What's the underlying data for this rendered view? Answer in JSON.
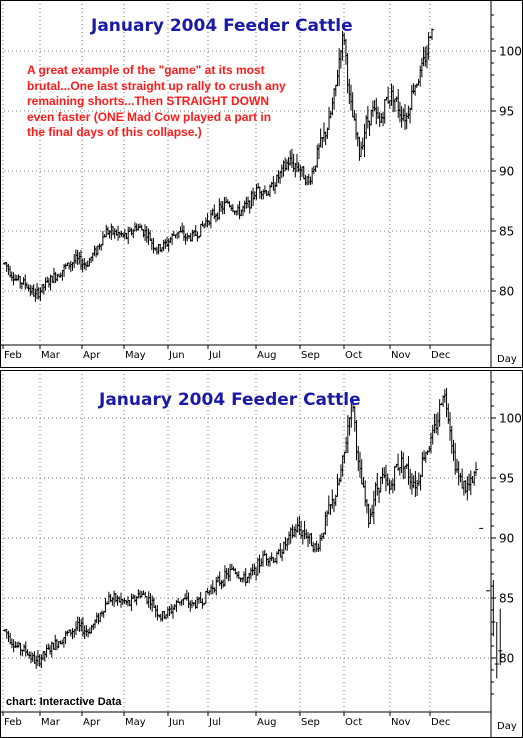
{
  "chart_data": [
    {
      "type": "ohlc",
      "title": "January 2004 Feeder Cattle",
      "annotation": "A great example of the \"game\" at its most brutal...One last straight up rally to crush any remaining shorts...Then STRAIGHT DOWN even faster (ONE Mad Cow played a part in the final days of this collapse.)",
      "x_tick_labels": [
        "Feb",
        "Mar",
        "Apr",
        "May",
        "Jun",
        "Jul",
        "Aug",
        "Sep",
        "Oct",
        "Nov",
        "Dec"
      ],
      "x_unit": "Day",
      "y_ticks": [
        80,
        85,
        90,
        95,
        100
      ],
      "ylim": [
        75.5,
        104.5
      ],
      "grid": true,
      "colors": {
        "title": "#1a1aa6",
        "annotation": "#ff1a1a",
        "bars": "#000000",
        "grid": "#666666"
      },
      "keypoints_day_close": [
        [
          0,
          82.3
        ],
        [
          6,
          81
        ],
        [
          12,
          80.6
        ],
        [
          18,
          79.6
        ],
        [
          24,
          80.5
        ],
        [
          30,
          81.3
        ],
        [
          36,
          82
        ],
        [
          42,
          82.6
        ],
        [
          48,
          82.2
        ],
        [
          54,
          83.4
        ],
        [
          60,
          85
        ],
        [
          66,
          84.8
        ],
        [
          72,
          84.5
        ],
        [
          78,
          85.4
        ],
        [
          84,
          84.8
        ],
        [
          90,
          83.4
        ],
        [
          96,
          84
        ],
        [
          102,
          85
        ],
        [
          108,
          84.4
        ],
        [
          114,
          84.8
        ],
        [
          120,
          86
        ],
        [
          126,
          86.6
        ],
        [
          132,
          87.4
        ],
        [
          138,
          86.5
        ],
        [
          144,
          87.2
        ],
        [
          150,
          88.6
        ],
        [
          156,
          88.2
        ],
        [
          162,
          89.5
        ],
        [
          168,
          90.8
        ],
        [
          174,
          90.4
        ],
        [
          180,
          89
        ],
        [
          186,
          91.8
        ],
        [
          192,
          94
        ],
        [
          196,
          97
        ],
        [
          199,
          100.5
        ],
        [
          201,
          101.2
        ],
        [
          204,
          96
        ],
        [
          208,
          93
        ],
        [
          210,
          91.5
        ],
        [
          214,
          94
        ],
        [
          218,
          95
        ],
        [
          222,
          94
        ],
        [
          226,
          96
        ],
        [
          230,
          96.4
        ],
        [
          234,
          95
        ],
        [
          238,
          94.5
        ],
        [
          242,
          97
        ],
        [
          246,
          98
        ],
        [
          250,
          100
        ],
        [
          253,
          102.3
        ]
      ],
      "days_total": 265
    },
    {
      "type": "ohlc",
      "title": "January 2004 Feeder Cattle",
      "credit": "chart: Interactive Data",
      "x_tick_labels": [
        "Feb",
        "Mar",
        "Apr",
        "May",
        "Jun",
        "Jul",
        "Aug",
        "Sep",
        "Oct",
        "Nov",
        "Dec"
      ],
      "x_unit": "Day",
      "y_ticks": [
        80,
        85,
        90,
        95,
        100
      ],
      "ylim": [
        76.8,
        103.8
      ],
      "grid": true,
      "colors": {
        "title": "#1a1aa6",
        "bars": "#000000",
        "grid": "#666666"
      },
      "keypoints_day_close": [
        [
          0,
          82.3
        ],
        [
          6,
          81
        ],
        [
          12,
          80.6
        ],
        [
          18,
          79.6
        ],
        [
          24,
          80.5
        ],
        [
          30,
          81.3
        ],
        [
          36,
          82
        ],
        [
          42,
          82.6
        ],
        [
          48,
          82.2
        ],
        [
          54,
          83.4
        ],
        [
          60,
          85
        ],
        [
          66,
          84.8
        ],
        [
          72,
          84.5
        ],
        [
          78,
          85.4
        ],
        [
          84,
          84.8
        ],
        [
          90,
          83.4
        ],
        [
          96,
          84
        ],
        [
          102,
          85
        ],
        [
          108,
          84.4
        ],
        [
          114,
          84.8
        ],
        [
          120,
          86
        ],
        [
          126,
          86.6
        ],
        [
          132,
          87.4
        ],
        [
          138,
          86.5
        ],
        [
          144,
          87.2
        ],
        [
          150,
          88.6
        ],
        [
          156,
          88.2
        ],
        [
          162,
          89.5
        ],
        [
          168,
          90.8
        ],
        [
          174,
          90.4
        ],
        [
          180,
          89
        ],
        [
          186,
          91.8
        ],
        [
          192,
          94
        ],
        [
          196,
          97
        ],
        [
          199,
          100.5
        ],
        [
          201,
          101.2
        ],
        [
          204,
          96
        ],
        [
          208,
          93
        ],
        [
          210,
          91.5
        ],
        [
          214,
          94
        ],
        [
          218,
          95
        ],
        [
          222,
          94
        ],
        [
          226,
          96
        ],
        [
          230,
          96.4
        ],
        [
          234,
          95
        ],
        [
          238,
          94.5
        ],
        [
          242,
          97
        ],
        [
          246,
          98
        ],
        [
          250,
          100
        ],
        [
          253,
          102.3
        ],
        [
          256,
          100.5
        ],
        [
          259,
          97
        ],
        [
          262,
          95
        ],
        [
          266,
          94.2
        ],
        [
          270,
          94.5
        ],
        [
          272,
          95.6
        ]
      ],
      "limit_down_days": [
        [
          275,
          90.8
        ],
        [
          279,
          85.6
        ],
        [
          282,
          83
        ],
        [
          284,
          79.5
        ],
        [
          286,
          80.6
        ]
      ],
      "days_total": 288
    }
  ]
}
